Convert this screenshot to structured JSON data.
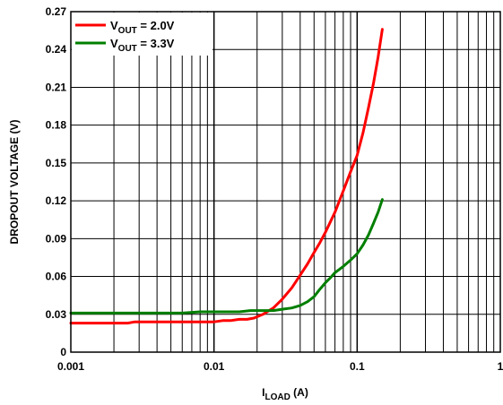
{
  "chart_data": {
    "type": "line",
    "x_scale": "log",
    "xlim": [
      0.001,
      1
    ],
    "ylim": [
      0,
      0.27
    ],
    "xticks": [
      "0.001",
      "0.01",
      "0.1",
      "1"
    ],
    "xtick_values": [
      0.001,
      0.01,
      0.1,
      1
    ],
    "yticks": [
      "0",
      "0.03",
      "0.06",
      "0.09",
      "0.12",
      "0.15",
      "0.18",
      "0.21",
      "0.24",
      "0.27"
    ],
    "ytick_values": [
      0,
      0.03,
      0.06,
      0.09,
      0.12,
      0.15,
      0.18,
      0.21,
      0.24,
      0.27
    ],
    "xlabel": {
      "main": "I",
      "sub": "LOAD",
      "rest": " (A)"
    },
    "ylabel": "DROPOUT VOLTAGE (V)",
    "grid": true,
    "legend_position": "top-left",
    "series": [
      {
        "name": "V_OUT = 2.0V",
        "label": {
          "main": "V",
          "sub": "OUT",
          "rest": " = 2.0V"
        },
        "color": "#ff0000",
        "points": [
          [
            0.001,
            0.023
          ],
          [
            0.0025,
            0.023
          ],
          [
            0.0028,
            0.024
          ],
          [
            0.005,
            0.024
          ],
          [
            0.01,
            0.024
          ],
          [
            0.0115,
            0.025
          ],
          [
            0.013,
            0.025
          ],
          [
            0.015,
            0.026
          ],
          [
            0.017,
            0.026
          ],
          [
            0.019,
            0.027
          ],
          [
            0.022,
            0.03
          ],
          [
            0.026,
            0.035
          ],
          [
            0.03,
            0.042
          ],
          [
            0.035,
            0.051
          ],
          [
            0.04,
            0.061
          ],
          [
            0.045,
            0.07
          ],
          [
            0.05,
            0.079
          ],
          [
            0.055,
            0.087
          ],
          [
            0.06,
            0.095
          ],
          [
            0.07,
            0.111
          ],
          [
            0.08,
            0.128
          ],
          [
            0.09,
            0.143
          ],
          [
            0.1,
            0.156
          ],
          [
            0.11,
            0.174
          ],
          [
            0.12,
            0.194
          ],
          [
            0.13,
            0.213
          ],
          [
            0.14,
            0.234
          ],
          [
            0.15,
            0.256
          ]
        ]
      },
      {
        "name": "V_OUT = 3.3V",
        "label": {
          "main": "V",
          "sub": "OUT",
          "rest": " = 3.3V"
        },
        "color": "#007f00",
        "points": [
          [
            0.001,
            0.031
          ],
          [
            0.002,
            0.031
          ],
          [
            0.004,
            0.031
          ],
          [
            0.006,
            0.031
          ],
          [
            0.008,
            0.032
          ],
          [
            0.01,
            0.032
          ],
          [
            0.012,
            0.032
          ],
          [
            0.015,
            0.032
          ],
          [
            0.018,
            0.033
          ],
          [
            0.022,
            0.033
          ],
          [
            0.026,
            0.033
          ],
          [
            0.03,
            0.034
          ],
          [
            0.035,
            0.035
          ],
          [
            0.04,
            0.037
          ],
          [
            0.045,
            0.04
          ],
          [
            0.05,
            0.044
          ],
          [
            0.055,
            0.05
          ],
          [
            0.06,
            0.055
          ],
          [
            0.065,
            0.059
          ],
          [
            0.07,
            0.063
          ],
          [
            0.08,
            0.068
          ],
          [
            0.09,
            0.073
          ],
          [
            0.1,
            0.078
          ],
          [
            0.11,
            0.085
          ],
          [
            0.12,
            0.093
          ],
          [
            0.13,
            0.102
          ],
          [
            0.14,
            0.111
          ],
          [
            0.15,
            0.121
          ]
        ]
      }
    ]
  }
}
